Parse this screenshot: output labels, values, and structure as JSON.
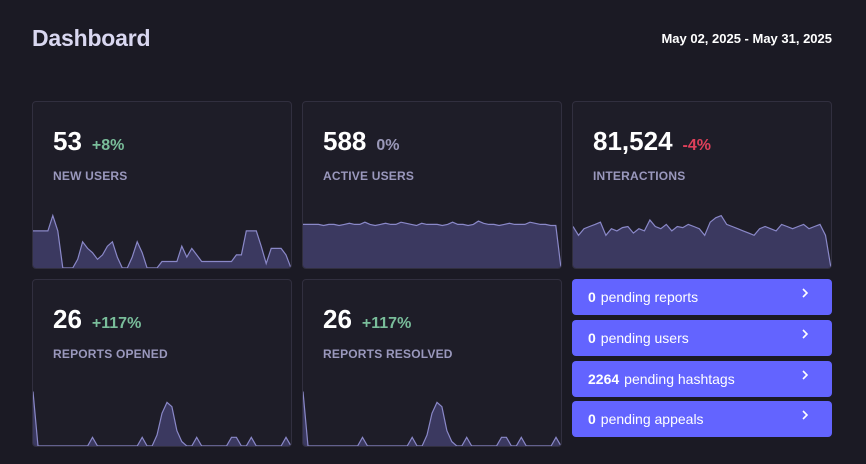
{
  "header": {
    "title": "Dashboard",
    "date_range": "May 02, 2025 - May 31, 2025"
  },
  "metrics": [
    {
      "value": "53",
      "change": "+8%",
      "label": "NEW USERS",
      "trend": "positive",
      "sparkline": [
        34,
        34,
        34,
        34,
        48,
        34,
        0,
        0,
        0,
        8,
        24,
        18,
        14,
        8,
        12,
        20,
        24,
        10,
        0,
        0,
        10,
        24,
        14,
        0,
        0,
        0,
        6,
        6,
        6,
        6,
        20,
        10,
        18,
        12,
        6,
        6,
        6,
        6,
        6,
        6,
        6,
        12,
        12,
        34,
        34,
        34,
        20,
        4,
        18,
        18,
        18,
        12,
        0
      ]
    },
    {
      "value": "588",
      "change": "0%",
      "label": "ACTIVE USERS",
      "trend": "neutral",
      "sparkline": [
        40,
        40,
        40,
        40,
        39,
        40,
        40,
        39,
        40,
        41,
        40,
        40,
        42,
        40,
        39,
        40,
        41,
        40,
        40,
        42,
        41,
        40,
        39,
        41,
        40,
        40,
        40,
        39,
        40,
        42,
        40,
        40,
        39,
        40,
        43,
        41,
        40,
        40,
        39,
        40,
        41,
        40,
        40,
        40,
        42,
        41,
        40,
        40,
        39,
        39,
        0
      ]
    },
    {
      "value": "81,524",
      "change": "-4%",
      "label": "INTERACTIONS",
      "trend": "negative",
      "sparkline": [
        38,
        30,
        36,
        38,
        40,
        42,
        30,
        36,
        34,
        37,
        38,
        32,
        36,
        34,
        44,
        38,
        36,
        40,
        34,
        38,
        37,
        40,
        38,
        36,
        30,
        42,
        46,
        48,
        40,
        38,
        36,
        34,
        32,
        30,
        36,
        38,
        36,
        34,
        40,
        38,
        36,
        38,
        40,
        36,
        38,
        40,
        30,
        0
      ]
    },
    {
      "value": "26",
      "change": "+117%",
      "label": "REPORTS OPENED",
      "trend": "positive",
      "sparkline": [
        50,
        0,
        0,
        0,
        0,
        0,
        0,
        0,
        0,
        0,
        0,
        0,
        8,
        0,
        0,
        0,
        0,
        0,
        0,
        0,
        0,
        0,
        8,
        0,
        0,
        10,
        30,
        40,
        36,
        14,
        4,
        0,
        0,
        8,
        0,
        0,
        0,
        0,
        0,
        0,
        8,
        8,
        0,
        0,
        8,
        0,
        0,
        0,
        0,
        0,
        0,
        8,
        0
      ]
    },
    {
      "value": "26",
      "change": "+117%",
      "label": "REPORTS RESOLVED",
      "trend": "positive",
      "sparkline": [
        50,
        0,
        0,
        0,
        0,
        0,
        0,
        0,
        0,
        0,
        0,
        0,
        8,
        0,
        0,
        0,
        0,
        0,
        0,
        0,
        0,
        0,
        8,
        0,
        0,
        10,
        30,
        40,
        36,
        14,
        4,
        0,
        0,
        8,
        0,
        0,
        0,
        0,
        0,
        0,
        8,
        8,
        0,
        0,
        8,
        0,
        0,
        0,
        0,
        0,
        0,
        8,
        0
      ]
    }
  ],
  "pending": [
    {
      "count": "0",
      "label": "pending reports"
    },
    {
      "count": "0",
      "label": "pending users"
    },
    {
      "count": "2264",
      "label": "pending hashtags"
    },
    {
      "count": "0",
      "label": "pending appeals"
    }
  ],
  "colors": {
    "background": "#1b1a24",
    "card_border": "#312f3f",
    "accent": "#6364ff",
    "positive": "#79bd9a",
    "negative": "#df405a",
    "sparkline_fill": "#3b3960",
    "sparkline_line": "#8a88c8"
  }
}
